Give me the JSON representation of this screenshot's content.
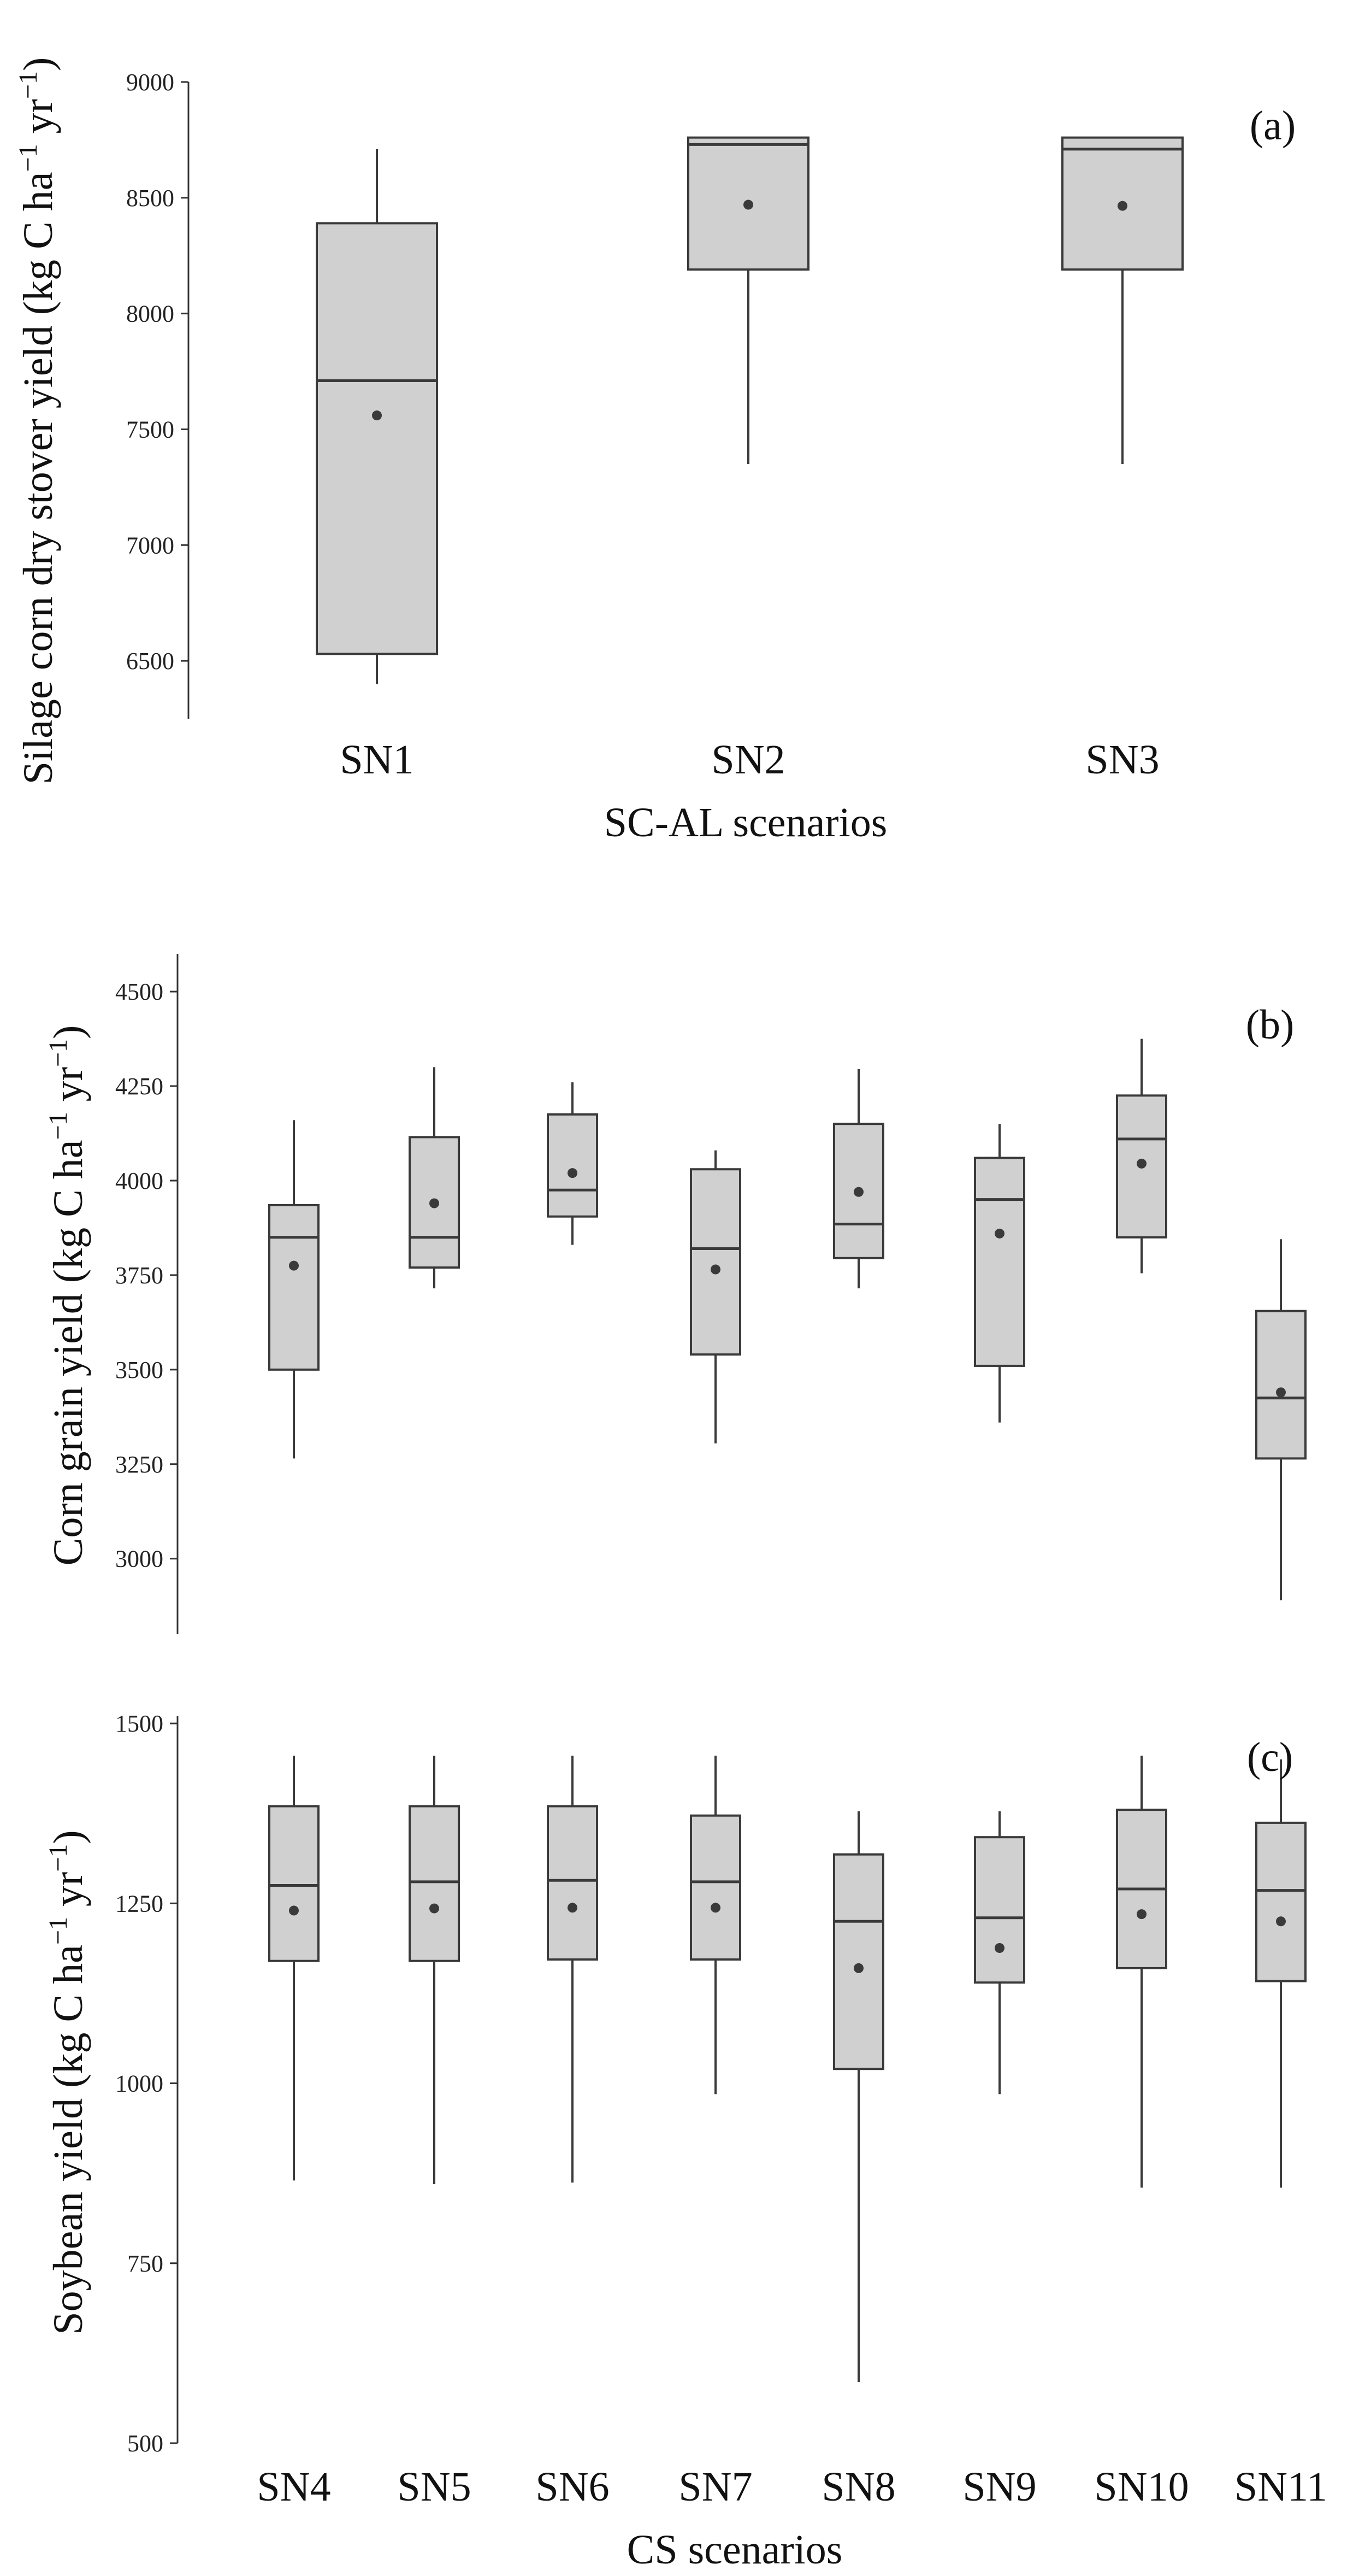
{
  "chart_data": [
    {
      "type": "box",
      "panel_label": "(a)",
      "xlabel": "SC-AL scenarios",
      "ylabel_main": "Silage corn dry stover yield (kg C ha",
      "ylabel_sup1": "−1",
      "ylabel_mid": " yr",
      "ylabel_sup2": "−1",
      "ylabel_end": ")",
      "ylim": [
        6250,
        9000
      ],
      "yticks": [
        6500,
        7000,
        7500,
        8000,
        8500,
        9000
      ],
      "ytick_labels": [
        "6500",
        "7000",
        "7500",
        "8000",
        "8500",
        "9000"
      ],
      "categories": [
        "SN1",
        "SN2",
        "SN3"
      ],
      "boxes": [
        {
          "whisker_low": 6400,
          "q1": 6530,
          "median": 7710,
          "q3": 8390,
          "whisker_high": 8710,
          "mean": 7560
        },
        {
          "whisker_low": 7350,
          "q1": 8190,
          "median": 8730,
          "q3": 8760,
          "whisker_high": 8760,
          "mean": 8470
        },
        {
          "whisker_low": 7350,
          "q1": 8190,
          "median": 8710,
          "q3": 8760,
          "whisker_high": 8760,
          "mean": 8465
        }
      ]
    },
    {
      "type": "box",
      "panel_label": "(b)",
      "xlabel": "",
      "ylabel_main": "Corn grain yield (kg C ha",
      "ylabel_sup1": "−1",
      "ylabel_mid": " yr",
      "ylabel_sup2": "−1",
      "ylabel_end": ")",
      "ylim": [
        2800,
        4600
      ],
      "yticks": [
        3000,
        3250,
        3500,
        3750,
        4000,
        4250,
        4500
      ],
      "ytick_labels": [
        "3000",
        "3250",
        "3500",
        "3750",
        "4000",
        "4250",
        "4500"
      ],
      "categories": [
        "SN4",
        "SN5",
        "SN6",
        "SN7",
        "SN8",
        "SN9",
        "SN10",
        "SN11"
      ],
      "boxes": [
        {
          "whisker_low": 3265,
          "q1": 3500,
          "median": 3850,
          "q3": 3935,
          "whisker_high": 4160,
          "mean": 3775
        },
        {
          "whisker_low": 3715,
          "q1": 3770,
          "median": 3850,
          "q3": 4115,
          "whisker_high": 4300,
          "mean": 3940
        },
        {
          "whisker_low": 3830,
          "q1": 3905,
          "median": 3975,
          "q3": 4175,
          "whisker_high": 4260,
          "mean": 4020
        },
        {
          "whisker_low": 3305,
          "q1": 3540,
          "median": 3820,
          "q3": 4030,
          "whisker_high": 4080,
          "mean": 3765
        },
        {
          "whisker_low": 3715,
          "q1": 3795,
          "median": 3885,
          "q3": 4150,
          "whisker_high": 4295,
          "mean": 3970
        },
        {
          "whisker_low": 3360,
          "q1": 3510,
          "median": 3950,
          "q3": 4060,
          "whisker_high": 4150,
          "mean": 3860
        },
        {
          "whisker_low": 3755,
          "q1": 3850,
          "median": 4110,
          "q3": 4225,
          "whisker_high": 4375,
          "mean": 4045
        },
        {
          "whisker_low": 2890,
          "q1": 3265,
          "median": 3425,
          "q3": 3655,
          "whisker_high": 3845,
          "mean": 3440
        }
      ]
    },
    {
      "type": "box",
      "panel_label": "(c)",
      "xlabel": "CS scenarios",
      "ylabel_main": "Soybean yield (kg C ha",
      "ylabel_sup1": "−1",
      "ylabel_mid": " yr",
      "ylabel_sup2": "−1",
      "ylabel_end": ")",
      "ylim": [
        500,
        1510
      ],
      "yticks": [
        500,
        750,
        1000,
        1250,
        1500
      ],
      "ytick_labels": [
        "500",
        "750",
        "1000",
        "1250",
        "1500"
      ],
      "categories": [
        "SN4",
        "SN5",
        "SN6",
        "SN7",
        "SN8",
        "SN9",
        "SN10",
        "SN11"
      ],
      "boxes": [
        {
          "whisker_low": 865,
          "q1": 1170,
          "median": 1275,
          "q3": 1385,
          "whisker_high": 1455,
          "mean": 1240
        },
        {
          "whisker_low": 860,
          "q1": 1170,
          "median": 1280,
          "q3": 1385,
          "whisker_high": 1455,
          "mean": 1243
        },
        {
          "whisker_low": 862,
          "q1": 1172,
          "median": 1282,
          "q3": 1385,
          "whisker_high": 1455,
          "mean": 1244
        },
        {
          "whisker_low": 985,
          "q1": 1172,
          "median": 1280,
          "q3": 1372,
          "whisker_high": 1455,
          "mean": 1244
        },
        {
          "whisker_low": 585,
          "q1": 1020,
          "median": 1225,
          "q3": 1318,
          "whisker_high": 1378,
          "mean": 1160
        },
        {
          "whisker_low": 985,
          "q1": 1140,
          "median": 1230,
          "q3": 1342,
          "whisker_high": 1378,
          "mean": 1188
        },
        {
          "whisker_low": 855,
          "q1": 1160,
          "median": 1270,
          "q3": 1380,
          "whisker_high": 1455,
          "mean": 1235
        },
        {
          "whisker_low": 855,
          "q1": 1142,
          "median": 1268,
          "q3": 1362,
          "whisker_high": 1450,
          "mean": 1225
        }
      ]
    }
  ]
}
